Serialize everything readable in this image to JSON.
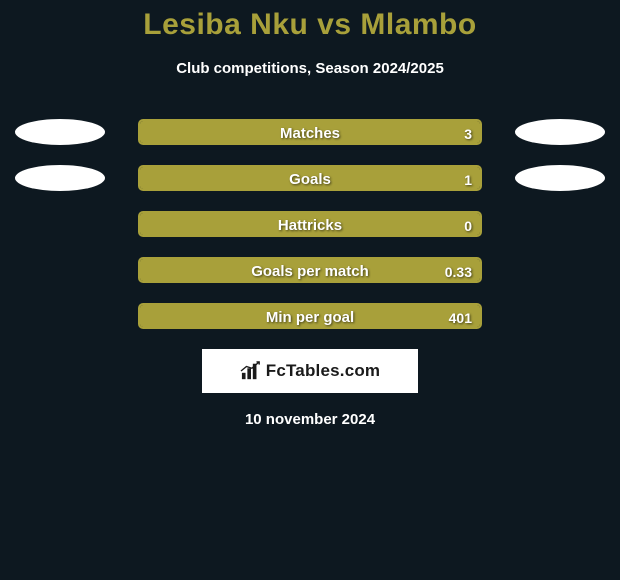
{
  "title": "Lesiba Nku vs Mlambo",
  "subtitle": "Club competitions, Season 2024/2025",
  "date": "10 november 2024",
  "logo": {
    "text": "FcTables.com"
  },
  "colors": {
    "background": "#0d1820",
    "accent": "#a8a03a",
    "text": "#ffffff",
    "ellipse": "#ffffff",
    "logo_bg": "#ffffff",
    "logo_text": "#1a1a1a"
  },
  "stats": [
    {
      "label": "Matches",
      "value": "3",
      "fill_pct": 100,
      "left_ellipse": true,
      "right_ellipse": true
    },
    {
      "label": "Goals",
      "value": "1",
      "fill_pct": 100,
      "left_ellipse": true,
      "right_ellipse": true
    },
    {
      "label": "Hattricks",
      "value": "0",
      "fill_pct": 100,
      "left_ellipse": false,
      "right_ellipse": false
    },
    {
      "label": "Goals per match",
      "value": "0.33",
      "fill_pct": 100,
      "left_ellipse": false,
      "right_ellipse": false
    },
    {
      "label": "Min per goal",
      "value": "401",
      "fill_pct": 100,
      "left_ellipse": false,
      "right_ellipse": false
    }
  ]
}
